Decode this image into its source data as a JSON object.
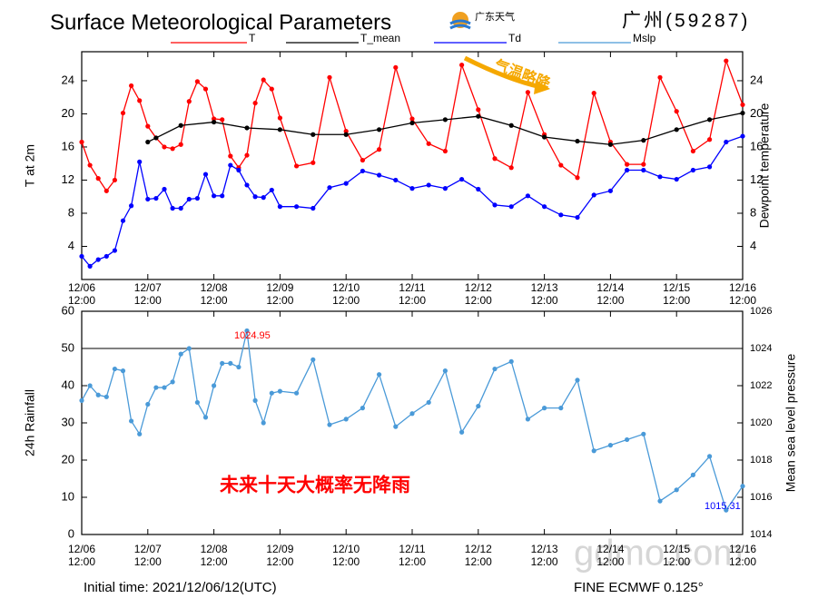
{
  "logo": "广东天气",
  "station": "广州(59287)",
  "footer_left": "Initial time: 2021/12/06/12(UTC)",
  "footer_right": "FINE ECMWF 0.125°",
  "watermark": "gdmo.com",
  "chart_data": [
    {
      "type": "line",
      "title": "Surface Meteorological Parameters",
      "ylabel": "T at 2m",
      "y2label": "Dewpoint temperature",
      "annotations": [
        "气温略降"
      ],
      "x": [
        0,
        3,
        6,
        9,
        12,
        15,
        18,
        21,
        24,
        27,
        30,
        33,
        36,
        39,
        42,
        45,
        48,
        51,
        54,
        57,
        60,
        63,
        66,
        69,
        72,
        78,
        84,
        90,
        96,
        102,
        108,
        114,
        120,
        126,
        132,
        138,
        144,
        150,
        156,
        162,
        168,
        174,
        180,
        186,
        192,
        198,
        204,
        210,
        216,
        222,
        228,
        234,
        240
      ],
      "xlim": [
        0,
        240
      ],
      "xticks": [
        {
          "value": 0,
          "label": "12/06 12:00"
        },
        {
          "value": 24,
          "label": "12/07 12:00"
        },
        {
          "value": 48,
          "label": "12/08 12:00"
        },
        {
          "value": 72,
          "label": "12/09 12:00"
        },
        {
          "value": 96,
          "label": "12/10 12:00"
        },
        {
          "value": 120,
          "label": "12/11 12:00"
        },
        {
          "value": 144,
          "label": "12/12 12:00"
        },
        {
          "value": 168,
          "label": "12/13 12:00"
        },
        {
          "value": 192,
          "label": "12/14 12:00"
        },
        {
          "value": 216,
          "label": "12/15 12:00"
        },
        {
          "value": 240,
          "label": "12/16 12:00"
        }
      ],
      "ylim": [
        0,
        27.5
      ],
      "yticks": [
        4,
        8,
        12,
        16,
        20,
        24
      ],
      "y2lim": [
        0,
        27.5
      ],
      "y2ticks": [
        4,
        8,
        12,
        16,
        20,
        24
      ],
      "series": [
        {
          "name": "T",
          "color": "#ff0000",
          "values": [
            16.6,
            13.8,
            12.2,
            10.7,
            12.0,
            20.1,
            23.4,
            21.6,
            18.5,
            17.1,
            16.0,
            15.8,
            16.3,
            21.5,
            23.9,
            23.0,
            19.4,
            19.3,
            14.9,
            13.5,
            15.0,
            21.3,
            24.1,
            23.0,
            19.5,
            13.7,
            14.1,
            24.4,
            17.9,
            14.4,
            15.7,
            25.6,
            19.4,
            16.4,
            15.5,
            25.9,
            20.5,
            14.6,
            13.5,
            22.6,
            17.5,
            13.8,
            12.3,
            22.5,
            16.6,
            13.9,
            13.9,
            24.4,
            20.3,
            15.5,
            16.9,
            26.4,
            21.1
          ]
        },
        {
          "name": "T_mean",
          "color": "#000000",
          "x": [
            24,
            27,
            36,
            48,
            60,
            72,
            84,
            96,
            108,
            120,
            132,
            144,
            156,
            168,
            180,
            192,
            204,
            216,
            228,
            240
          ],
          "values": [
            16.6,
            17.1,
            18.6,
            19.0,
            18.3,
            18.1,
            17.5,
            17.5,
            18.1,
            18.9,
            19.3,
            19.7,
            18.6,
            17.2,
            16.7,
            16.3,
            16.8,
            18.1,
            19.3,
            20.1
          ]
        },
        {
          "name": "Td",
          "color": "#0000ff",
          "axis": "y2",
          "values": [
            2.8,
            1.6,
            2.4,
            2.8,
            3.5,
            7.1,
            8.9,
            14.2,
            9.7,
            9.8,
            10.9,
            8.6,
            8.6,
            9.7,
            9.8,
            12.7,
            10.1,
            10.1,
            13.8,
            13.2,
            11.4,
            10.0,
            9.9,
            10.8,
            8.8,
            8.8,
            8.6,
            11.1,
            11.6,
            13.1,
            12.6,
            12.0,
            11.0,
            11.4,
            11.0,
            12.1,
            10.9,
            9.0,
            8.8,
            10.1,
            8.8,
            7.8,
            7.5,
            10.2,
            10.7,
            13.2,
            13.2,
            12.4,
            12.1,
            13.2,
            13.6,
            16.6,
            17.3
          ]
        }
      ]
    },
    {
      "type": "line",
      "ylabel": "24h Rainfall",
      "y2label": "Mean sea level pressure",
      "annotations": [
        "1024.95",
        "1015.31",
        "未来十天大概率无降雨"
      ],
      "x": [
        0,
        3,
        6,
        9,
        12,
        15,
        18,
        21,
        24,
        27,
        30,
        33,
        36,
        39,
        42,
        45,
        48,
        51,
        54,
        57,
        60,
        63,
        66,
        69,
        72,
        78,
        84,
        90,
        96,
        102,
        108,
        114,
        120,
        126,
        132,
        138,
        144,
        150,
        156,
        162,
        168,
        174,
        180,
        186,
        192,
        198,
        204,
        210,
        216,
        222,
        228,
        234,
        240
      ],
      "xlim": [
        0,
        240
      ],
      "xticks": [
        {
          "value": 0,
          "label": "12/06 12:00"
        },
        {
          "value": 24,
          "label": "12/07 12:00"
        },
        {
          "value": 48,
          "label": "12/08 12:00"
        },
        {
          "value": 72,
          "label": "12/09 12:00"
        },
        {
          "value": 96,
          "label": "12/10 12:00"
        },
        {
          "value": 120,
          "label": "12/11 12:00"
        },
        {
          "value": 144,
          "label": "12/12 12:00"
        },
        {
          "value": 168,
          "label": "12/13 12:00"
        },
        {
          "value": 192,
          "label": "12/14 12:00"
        },
        {
          "value": 216,
          "label": "12/15 12:00"
        },
        {
          "value": 240,
          "label": "12/16 12:00"
        }
      ],
      "ylim": [
        0,
        60
      ],
      "yticks": [
        0,
        10,
        20,
        30,
        40,
        50,
        60
      ],
      "y2lim": [
        1014,
        1026
      ],
      "y2ticks": [
        1014,
        1016,
        1018,
        1020,
        1022,
        1024,
        1026
      ],
      "series": [
        {
          "name": "Mslp",
          "color": "#4a9ad8",
          "axis": "y2",
          "values": [
            1021.2,
            1022.0,
            1021.5,
            1021.4,
            1022.9,
            1022.8,
            1020.1,
            1019.4,
            1021.0,
            1021.9,
            1021.9,
            1022.2,
            1023.7,
            1024.0,
            1021.1,
            1020.3,
            1022.0,
            1023.2,
            1023.2,
            1023.0,
            1024.95,
            1021.2,
            1020.0,
            1021.6,
            1021.7,
            1021.6,
            1023.4,
            1019.9,
            1020.2,
            1020.8,
            1022.6,
            1019.8,
            1020.5,
            1021.1,
            1022.8,
            1019.5,
            1020.9,
            1022.9,
            1023.3,
            1020.2,
            1020.8,
            1020.8,
            1022.3,
            1018.5,
            1018.8,
            1019.1,
            1019.4,
            1015.8,
            1016.4,
            1017.2,
            1018.2,
            1015.31,
            1016.6
          ]
        }
      ]
    }
  ]
}
